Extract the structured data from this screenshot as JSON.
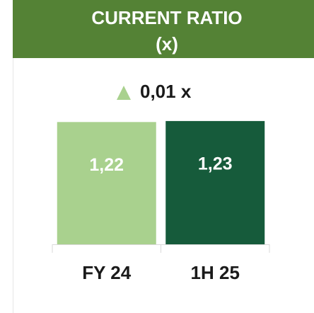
{
  "chart_data": {
    "type": "bar",
    "title": "CURRENT RATIO",
    "subtitle": "(x)",
    "annotation": "0,01 x",
    "categories": [
      "FY 24",
      "1H 25"
    ],
    "values": [
      1.22,
      1.23
    ],
    "value_labels": [
      "1,22",
      "1,23"
    ],
    "colors": [
      "#a9d18e",
      "#165b3b"
    ],
    "ylim": [
      0,
      1.3
    ]
  }
}
